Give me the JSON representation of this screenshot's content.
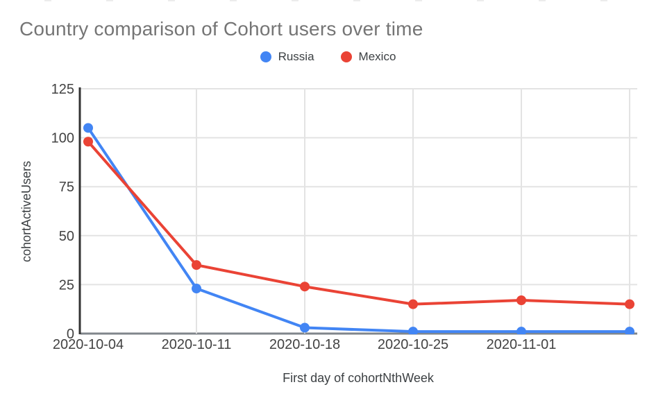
{
  "header": {
    "title": "Country comparison of Cohort users over time"
  },
  "chart_data": {
    "type": "line",
    "title": "Country comparison of Cohort users over time",
    "xlabel": "First day of cohortNthWeek",
    "ylabel": "cohortActiveUsers",
    "x_labels": [
      "2020-10-04",
      "2020-10-11",
      "2020-10-18",
      "2020-10-25",
      "2020-11-01",
      ""
    ],
    "series": [
      {
        "name": "Russia",
        "color": "#4285F4",
        "values": [
          105,
          23,
          3,
          1,
          1,
          1
        ]
      },
      {
        "name": "Mexico",
        "color": "#EA4335",
        "values": [
          98,
          35,
          24,
          15,
          17,
          15
        ]
      }
    ],
    "ylim": [
      0,
      125
    ],
    "yticks": [
      0,
      25,
      50,
      75,
      100,
      125
    ],
    "grid": true,
    "legend_position": "top-center",
    "point_radius": 7,
    "line_width": 4
  },
  "colors": {
    "title": "#757575",
    "legend_text": "#3c4043",
    "tick_label": "#424242",
    "axis_title": "#3c4043",
    "gridline": "#e3e3e3",
    "baseline": "#80868b",
    "axis_line": "#333333",
    "background": "#ffffff"
  }
}
